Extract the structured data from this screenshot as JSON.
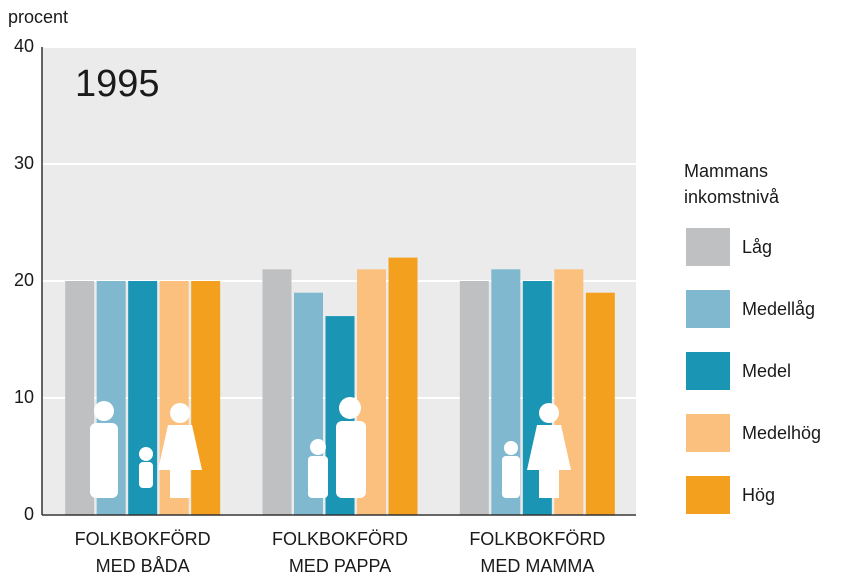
{
  "chart_data": {
    "type": "bar",
    "y_label": "procent",
    "annotation": "1995",
    "legend_title": "Mammans\ninkomstnivå",
    "categories": [
      "FOLKBOKFÖRD\nMED BÅDA",
      "FOLKBOKFÖRD\nMED PAPPA",
      "FOLKBOKFÖRD\nMED MAMMA"
    ],
    "series": [
      {
        "name": "Låg",
        "color": "#bfc0c2",
        "values": [
          20,
          21,
          20
        ]
      },
      {
        "name": "Medellåg",
        "color": "#7fb8cf",
        "values": [
          20,
          19,
          21
        ]
      },
      {
        "name": "Medel",
        "color": "#1a96b4",
        "values": [
          20,
          17,
          20
        ]
      },
      {
        "name": "Medelhög",
        "color": "#fbc07e",
        "values": [
          20,
          21,
          21
        ]
      },
      {
        "name": "Hög",
        "color": "#f3a01f",
        "values": [
          20,
          22,
          19
        ]
      }
    ],
    "ylim": [
      0,
      40
    ],
    "yticks": [
      0,
      10,
      20,
      30,
      40
    ],
    "grid": true,
    "legend": "right"
  }
}
